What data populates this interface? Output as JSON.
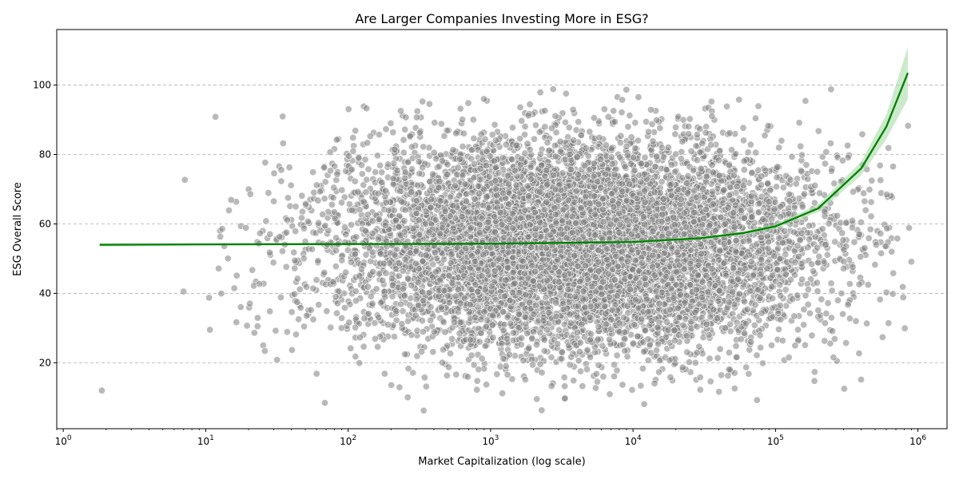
{
  "chart_data": {
    "type": "scatter",
    "title": "Are Larger Companies Investing More in ESG?",
    "xlabel": "Market Capitalization (log scale)",
    "ylabel": "ESG Overall Score",
    "x_scale": "log",
    "xlim": [
      0.9,
      1600000
    ],
    "ylim": [
      1,
      116
    ],
    "x_ticks": [
      {
        "base": "10",
        "exp": "0",
        "value": 1
      },
      {
        "base": "10",
        "exp": "1",
        "value": 10
      },
      {
        "base": "10",
        "exp": "2",
        "value": 100
      },
      {
        "base": "10",
        "exp": "3",
        "value": 1000
      },
      {
        "base": "10",
        "exp": "4",
        "value": 10000
      },
      {
        "base": "10",
        "exp": "5",
        "value": 100000
      },
      {
        "base": "10",
        "exp": "6",
        "value": 1000000
      }
    ],
    "y_ticks": [
      {
        "label": "20",
        "value": 20
      },
      {
        "label": "40",
        "value": 40
      },
      {
        "label": "60",
        "value": 60
      },
      {
        "label": "80",
        "value": 80
      },
      {
        "label": "100",
        "value": 100
      }
    ],
    "grid": "y-dashed",
    "colors": {
      "points": "#808080",
      "trend": "#008000",
      "band": "#a8dca8",
      "grid": "#b0b0b0"
    },
    "trend_line": {
      "x": [
        1.8,
        10,
        100,
        1000,
        10000,
        30000,
        60000,
        100000,
        200000,
        400000,
        600000,
        850000
      ],
      "y": [
        54.0,
        54.1,
        54.2,
        54.3,
        54.8,
        55.9,
        57.4,
        59.3,
        64.5,
        76.0,
        88.0,
        103.5
      ]
    },
    "confidence_band": {
      "x": [
        1.8,
        10,
        100,
        1000,
        10000,
        30000,
        60000,
        100000,
        200000,
        400000,
        600000,
        850000
      ],
      "upper": [
        54.5,
        54.4,
        54.4,
        54.5,
        55.1,
        56.3,
        57.9,
        60.0,
        65.6,
        78.0,
        91.5,
        111.0
      ],
      "lower": [
        53.5,
        53.8,
        54.0,
        54.1,
        54.5,
        55.5,
        56.9,
        58.6,
        63.4,
        74.0,
        84.5,
        96.0
      ]
    },
    "scatter_distribution": {
      "point_count": 9000,
      "x_log10_center": 3.6,
      "x_log10_spread": 0.85,
      "y_mean": 54,
      "y_sd": 15,
      "x_range": [
        1.8,
        900000
      ],
      "y_range": [
        6,
        99
      ]
    }
  }
}
